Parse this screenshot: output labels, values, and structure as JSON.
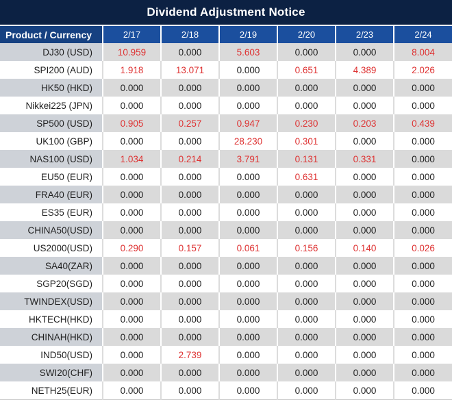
{
  "title": "Dividend Adjustment Notice",
  "columns": {
    "product_header": "Product / Currency",
    "dates": [
      "2/17",
      "2/18",
      "2/19",
      "2/20",
      "2/23",
      "2/24"
    ]
  },
  "rows": [
    {
      "product": "DJ30 (USD)",
      "values": [
        "10.959",
        "0.000",
        "5.603",
        "0.000",
        "0.000",
        "8.004"
      ]
    },
    {
      "product": "SPI200 (AUD)",
      "values": [
        "1.918",
        "13.071",
        "0.000",
        "0.651",
        "4.389",
        "2.026"
      ]
    },
    {
      "product": "HK50 (HKD)",
      "values": [
        "0.000",
        "0.000",
        "0.000",
        "0.000",
        "0.000",
        "0.000"
      ]
    },
    {
      "product": "Nikkei225 (JPN)",
      "values": [
        "0.000",
        "0.000",
        "0.000",
        "0.000",
        "0.000",
        "0.000"
      ]
    },
    {
      "product": "SP500 (USD)",
      "values": [
        "0.905",
        "0.257",
        "0.947",
        "0.230",
        "0.203",
        "0.439"
      ]
    },
    {
      "product": "UK100 (GBP)",
      "values": [
        "0.000",
        "0.000",
        "28.230",
        "0.301",
        "0.000",
        "0.000"
      ]
    },
    {
      "product": "NAS100 (USD)",
      "values": [
        "1.034",
        "0.214",
        "3.791",
        "0.131",
        "0.331",
        "0.000"
      ]
    },
    {
      "product": "EU50 (EUR)",
      "values": [
        "0.000",
        "0.000",
        "0.000",
        "0.631",
        "0.000",
        "0.000"
      ]
    },
    {
      "product": "FRA40 (EUR)",
      "values": [
        "0.000",
        "0.000",
        "0.000",
        "0.000",
        "0.000",
        "0.000"
      ]
    },
    {
      "product": "ES35 (EUR)",
      "values": [
        "0.000",
        "0.000",
        "0.000",
        "0.000",
        "0.000",
        "0.000"
      ]
    },
    {
      "product": "CHINA50(USD)",
      "values": [
        "0.000",
        "0.000",
        "0.000",
        "0.000",
        "0.000",
        "0.000"
      ]
    },
    {
      "product": "US2000(USD)",
      "values": [
        "0.290",
        "0.157",
        "0.061",
        "0.156",
        "0.140",
        "0.026"
      ]
    },
    {
      "product": "SA40(ZAR)",
      "values": [
        "0.000",
        "0.000",
        "0.000",
        "0.000",
        "0.000",
        "0.000"
      ]
    },
    {
      "product": "SGP20(SGD)",
      "values": [
        "0.000",
        "0.000",
        "0.000",
        "0.000",
        "0.000",
        "0.000"
      ]
    },
    {
      "product": "TWINDEX(USD)",
      "values": [
        "0.000",
        "0.000",
        "0.000",
        "0.000",
        "0.000",
        "0.000"
      ]
    },
    {
      "product": "HKTECH(HKD)",
      "values": [
        "0.000",
        "0.000",
        "0.000",
        "0.000",
        "0.000",
        "0.000"
      ]
    },
    {
      "product": "CHINAH(HKD)",
      "values": [
        "0.000",
        "0.000",
        "0.000",
        "0.000",
        "0.000",
        "0.000"
      ]
    },
    {
      "product": "IND50(USD)",
      "values": [
        "0.000",
        "2.739",
        "0.000",
        "0.000",
        "0.000",
        "0.000"
      ]
    },
    {
      "product": "SWI20(CHF)",
      "values": [
        "0.000",
        "0.000",
        "0.000",
        "0.000",
        "0.000",
        "0.000"
      ]
    },
    {
      "product": "NETH25(EUR)",
      "values": [
        "0.000",
        "0.000",
        "0.000",
        "0.000",
        "0.000",
        "0.000"
      ]
    }
  ],
  "colors": {
    "title_bg": "#0c2143",
    "header_bg": "#1b4f9e",
    "header_product_bg": "#164181",
    "shade_row_bg": "#dadada",
    "shade_product_bg": "#ced2d8",
    "nonzero_value": "#de3232",
    "zero_value": "#1f1f1f"
  }
}
